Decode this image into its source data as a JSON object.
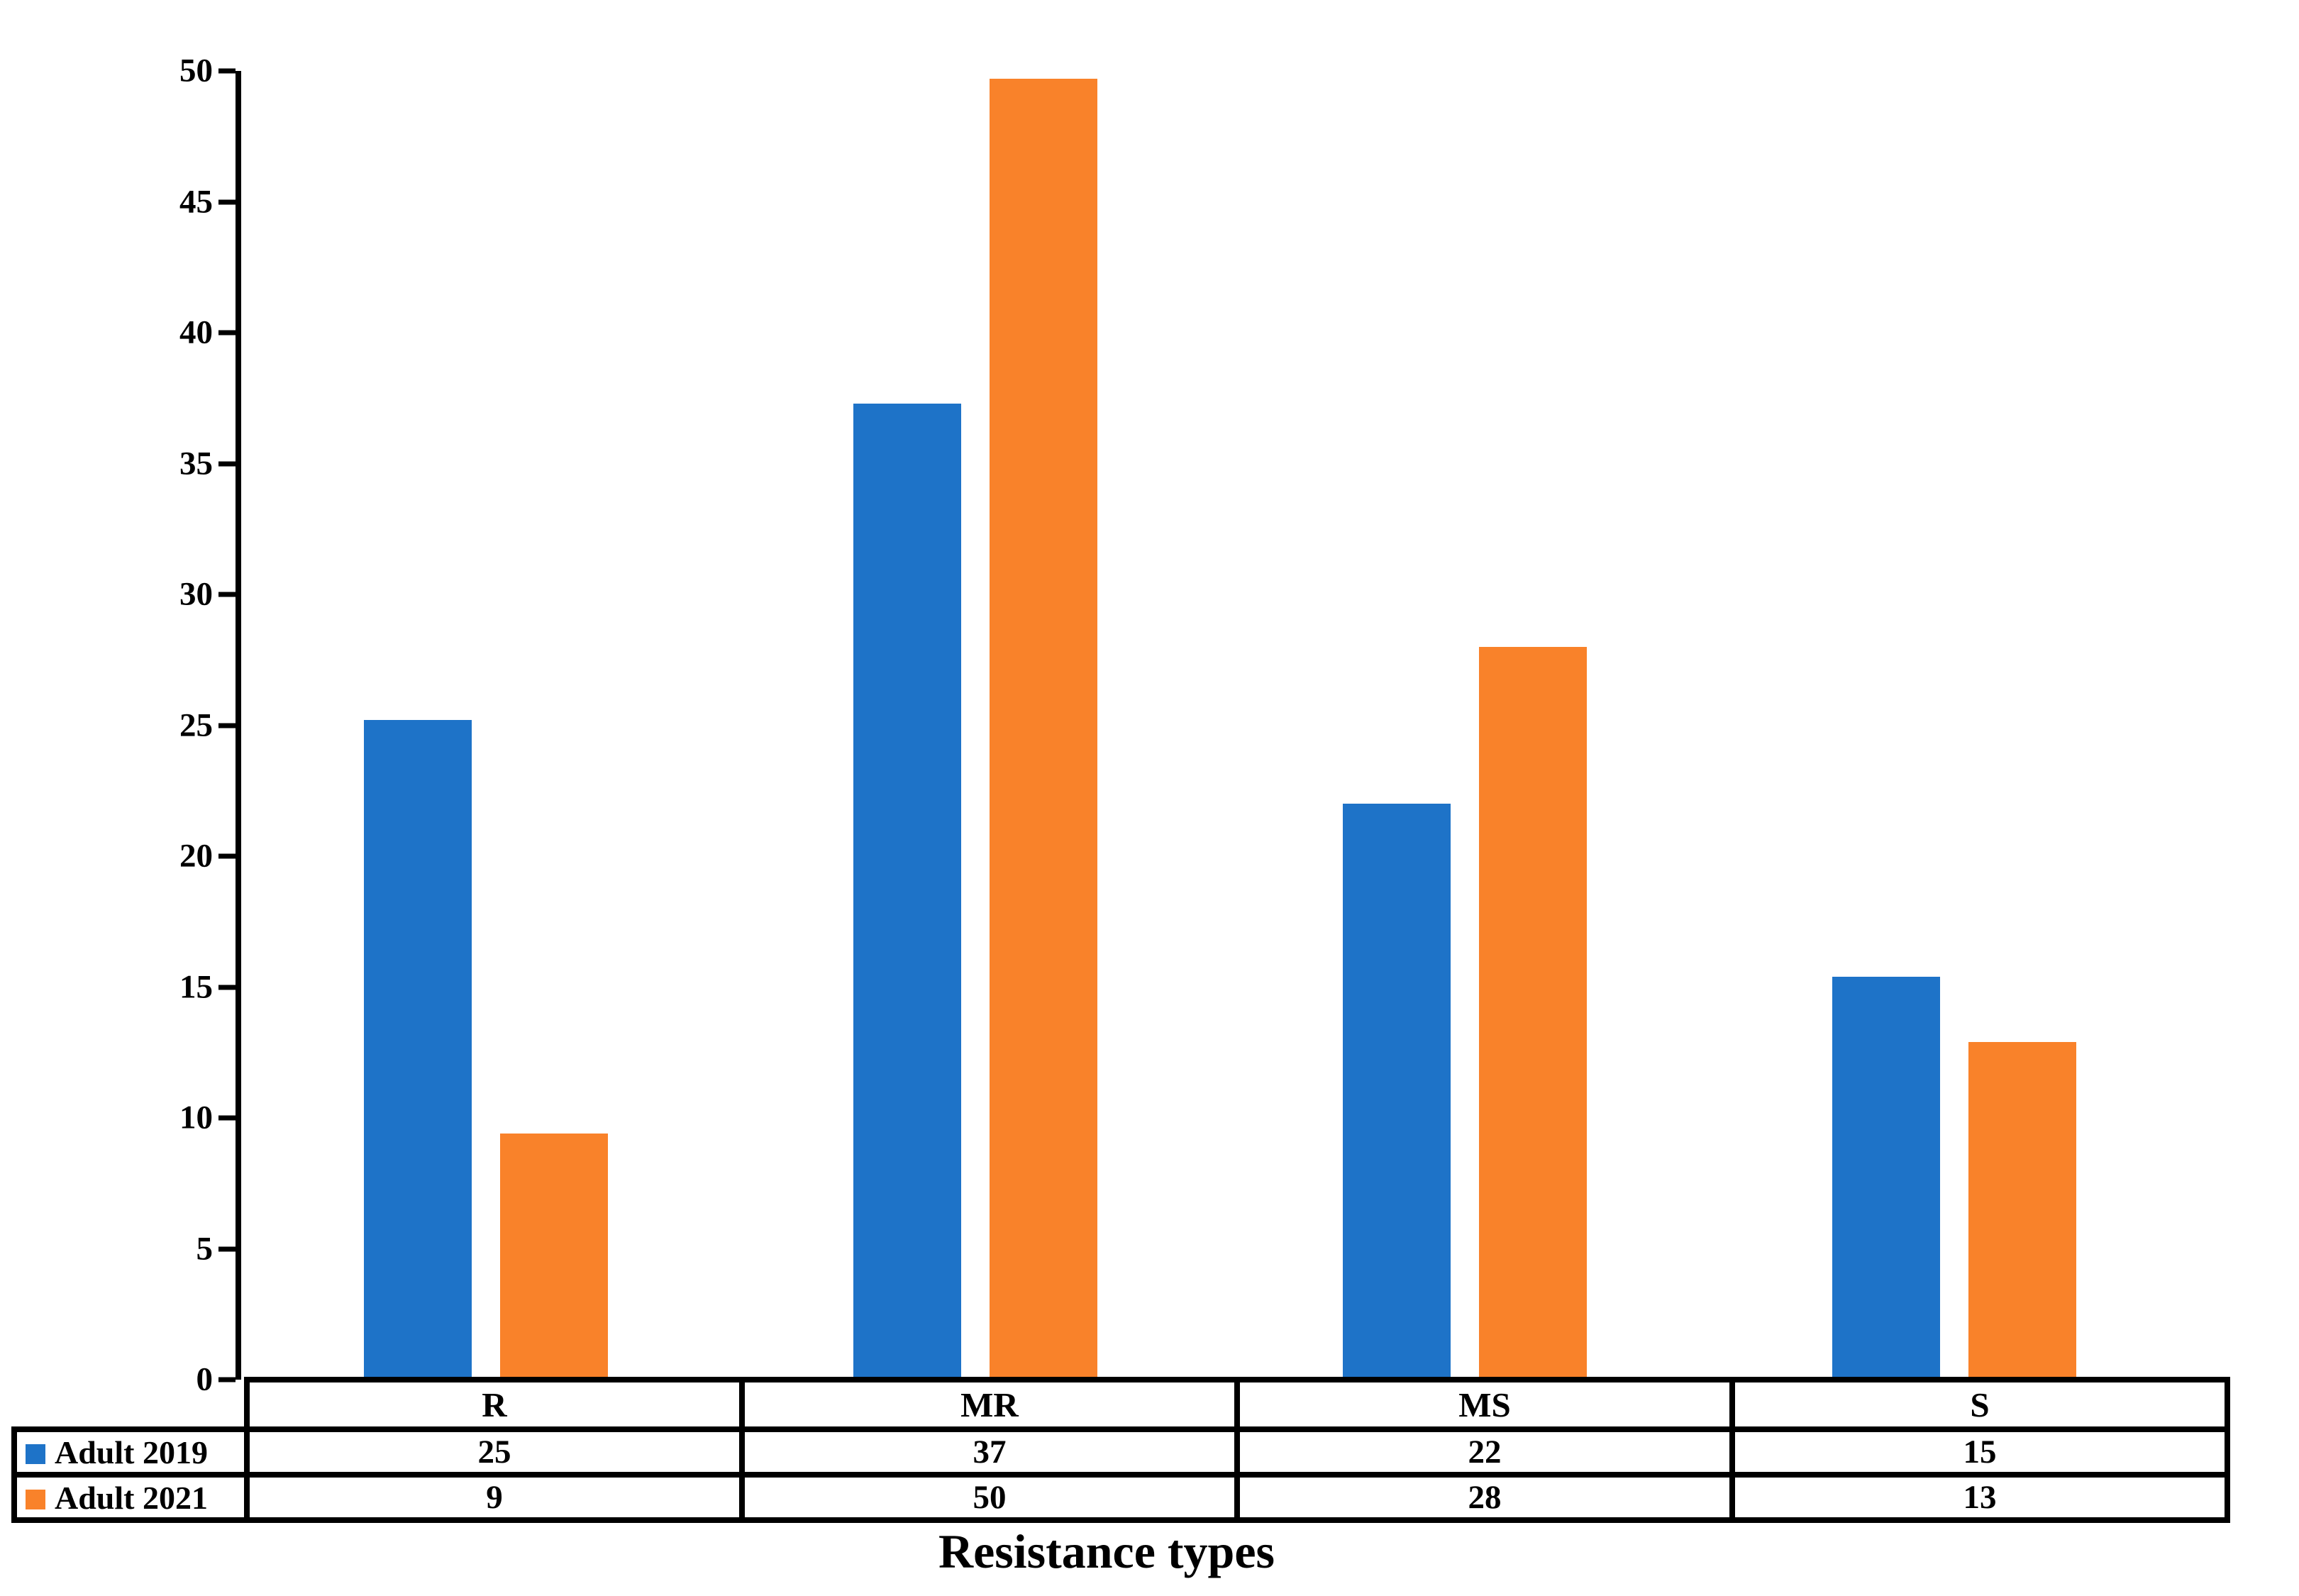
{
  "chart_data": {
    "type": "bar",
    "title": "",
    "xlabel": "Resistance types",
    "ylabel": "",
    "categories": [
      "R",
      "MR",
      "MS",
      "S"
    ],
    "series": [
      {
        "name": "Adult 2019",
        "color": "#1E73C8",
        "values": [
          25,
          37,
          22,
          15
        ],
        "plot_values": [
          25.2,
          37.3,
          22.0,
          15.4
        ]
      },
      {
        "name": "Adult 2021",
        "color": "#F9822A",
        "values": [
          9,
          50,
          28,
          13
        ],
        "plot_values": [
          9.4,
          49.7,
          28.0,
          12.9
        ]
      }
    ],
    "ylim": [
      0,
      50
    ],
    "yticks": [
      0,
      5,
      10,
      15,
      20,
      25,
      30,
      35,
      40,
      45,
      50
    ],
    "grid": false,
    "legend_position": "table-left",
    "data_table_shown": true,
    "axis_color": "#000000",
    "background_color": "#FFFFFF"
  }
}
